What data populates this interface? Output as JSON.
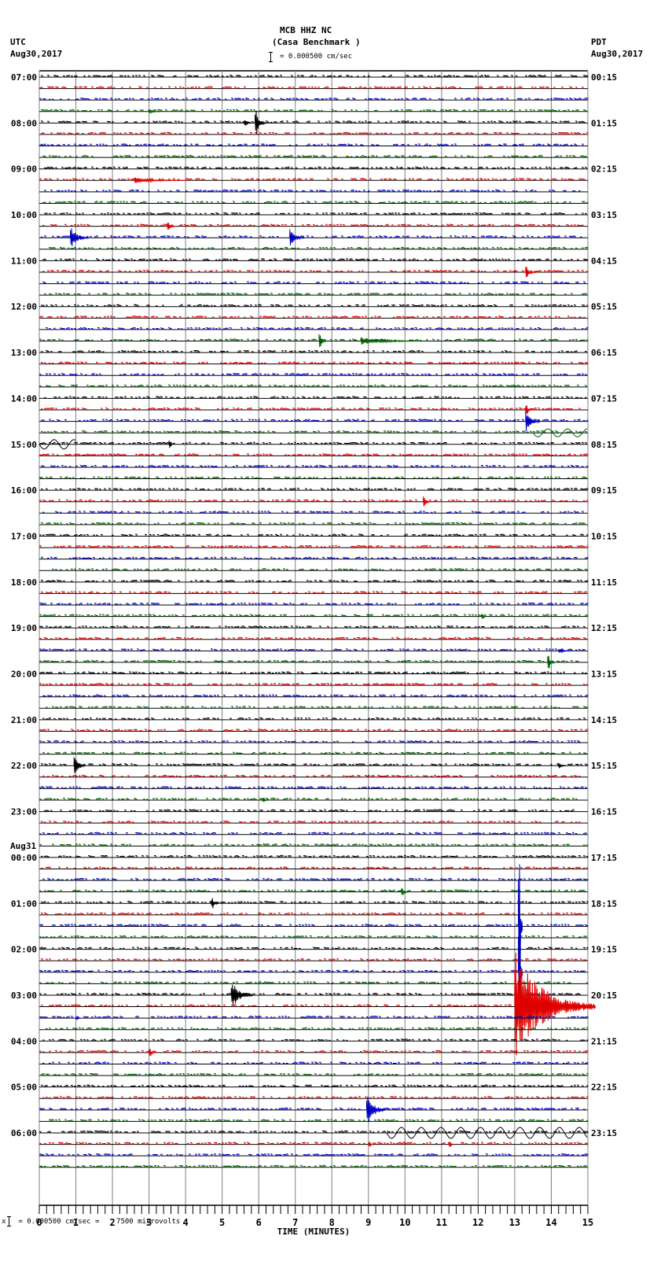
{
  "header": {
    "station": "MCB HHZ NC",
    "site": "(Casa Benchmark )",
    "left_tz": "UTC",
    "left_date": "Aug30,2017",
    "right_tz": "PDT",
    "right_date": "Aug30,2017",
    "scale_text": "= 0.000500 cm/sec"
  },
  "footer": {
    "prefix": "x",
    "text": "= 0.000500 cm/sec =    7500 microvolts"
  },
  "colors": {
    "trace_cycle": [
      "#000000",
      "#e00000",
      "#0000c0",
      "#006000"
    ],
    "grid": "#808080",
    "baseline": "#000000",
    "background": "#ffffff"
  },
  "chart_data": {
    "type": "line",
    "title": "MCB HHZ NC (Casa Benchmark )",
    "subtitle": "helicorder seismogram, 15-minute lines",
    "xlabel": "TIME (MINUTES)",
    "ylabel": "",
    "xlim": [
      0,
      15
    ],
    "x_ticks": [
      0,
      1,
      2,
      3,
      4,
      5,
      6,
      7,
      8,
      9,
      10,
      11,
      12,
      13,
      14,
      15
    ],
    "minor_ticks_per_minute": 5,
    "grid": true,
    "scale": "0.000500 cm/sec = 7500 microvolts",
    "rows_per_hour": 4,
    "row_count": 96,
    "left_labels": [
      {
        "row": 0,
        "text": "07:00"
      },
      {
        "row": 4,
        "text": "08:00"
      },
      {
        "row": 8,
        "text": "09:00"
      },
      {
        "row": 12,
        "text": "10:00"
      },
      {
        "row": 16,
        "text": "11:00"
      },
      {
        "row": 20,
        "text": "12:00"
      },
      {
        "row": 24,
        "text": "13:00"
      },
      {
        "row": 28,
        "text": "14:00"
      },
      {
        "row": 32,
        "text": "15:00"
      },
      {
        "row": 36,
        "text": "16:00"
      },
      {
        "row": 40,
        "text": "17:00"
      },
      {
        "row": 44,
        "text": "18:00"
      },
      {
        "row": 48,
        "text": "19:00"
      },
      {
        "row": 52,
        "text": "20:00"
      },
      {
        "row": 56,
        "text": "21:00"
      },
      {
        "row": 60,
        "text": "22:00"
      },
      {
        "row": 64,
        "text": "23:00"
      },
      {
        "row": 68,
        "text": "00:00",
        "date": "Aug31"
      },
      {
        "row": 72,
        "text": "01:00"
      },
      {
        "row": 76,
        "text": "02:00"
      },
      {
        "row": 80,
        "text": "03:00"
      },
      {
        "row": 84,
        "text": "04:00"
      },
      {
        "row": 88,
        "text": "05:00"
      },
      {
        "row": 92,
        "text": "06:00"
      }
    ],
    "right_labels": [
      "00:15",
      "01:15",
      "02:15",
      "03:15",
      "04:15",
      "05:15",
      "06:15",
      "07:15",
      "08:15",
      "09:15",
      "10:15",
      "11:15",
      "12:15",
      "13:15",
      "14:15",
      "15:15",
      "16:15",
      "17:15",
      "18:15",
      "19:15",
      "20:15",
      "21:15",
      "22:15",
      "23:15"
    ],
    "events": [
      {
        "row": 3,
        "minute": 3.0,
        "amp": 3,
        "dur": 0.3
      },
      {
        "row": 4,
        "minute": 5.9,
        "amp": 16,
        "dur": 0.3
      },
      {
        "row": 4,
        "minute": 5.6,
        "amp": 4,
        "dur": 0.2
      },
      {
        "row": 9,
        "minute": 2.6,
        "amp": 4,
        "dur": 1.4
      },
      {
        "row": 13,
        "minute": 3.5,
        "amp": 6,
        "dur": 0.2
      },
      {
        "row": 14,
        "minute": 0.85,
        "amp": 14,
        "dur": 0.5
      },
      {
        "row": 14,
        "minute": 6.85,
        "amp": 11,
        "dur": 0.4
      },
      {
        "row": 17,
        "minute": 13.3,
        "amp": 8,
        "dur": 0.3
      },
      {
        "row": 23,
        "minute": 7.65,
        "amp": 9,
        "dur": 0.2
      },
      {
        "row": 23,
        "minute": 8.8,
        "amp": 5,
        "dur": 1.7
      },
      {
        "row": 29,
        "minute": 13.3,
        "amp": 6,
        "dur": 0.2
      },
      {
        "row": 30,
        "minute": 13.3,
        "amp": 14,
        "dur": 0.4
      },
      {
        "row": 31,
        "minute": 13.5,
        "amp": 5,
        "dur": 1.5,
        "wave": true
      },
      {
        "row": 32,
        "minute": 0.0,
        "amp": 6,
        "dur": 1.0,
        "wave": true
      },
      {
        "row": 32,
        "minute": 3.55,
        "amp": 5,
        "dur": 0.1
      },
      {
        "row": 37,
        "minute": 10.5,
        "amp": 7,
        "dur": 0.2
      },
      {
        "row": 47,
        "minute": 12.1,
        "amp": 5,
        "dur": 0.1
      },
      {
        "row": 50,
        "minute": 14.2,
        "amp": 5,
        "dur": 0.3
      },
      {
        "row": 51,
        "minute": 13.9,
        "amp": 9,
        "dur": 0.2
      },
      {
        "row": 60,
        "minute": 0.95,
        "amp": 14,
        "dur": 0.3
      },
      {
        "row": 60,
        "minute": 14.2,
        "amp": 4,
        "dur": 0.2
      },
      {
        "row": 63,
        "minute": 6.1,
        "amp": 4,
        "dur": 0.2
      },
      {
        "row": 71,
        "minute": 9.9,
        "amp": 7,
        "dur": 0.2
      },
      {
        "row": 72,
        "minute": 4.7,
        "amp": 7,
        "dur": 0.2
      },
      {
        "row": 74,
        "minute": 13.1,
        "amp": 90,
        "dur": 0.1
      },
      {
        "row": 78,
        "minute": 13.1,
        "amp": 60,
        "dur": 0.1
      },
      {
        "row": 80,
        "minute": 5.25,
        "amp": 20,
        "dur": 0.6
      },
      {
        "row": 81,
        "minute": 13.0,
        "amp": 70,
        "dur": 2.2
      },
      {
        "row": 82,
        "minute": 1.0,
        "amp": 3,
        "dur": 0.1
      },
      {
        "row": 85,
        "minute": 3.0,
        "amp": 6,
        "dur": 0.2
      },
      {
        "row": 90,
        "minute": 8.95,
        "amp": 24,
        "dur": 0.5
      },
      {
        "row": 92,
        "minute": 9.5,
        "amp": 7,
        "dur": 5.5,
        "wave": true
      },
      {
        "row": 93,
        "minute": 11.2,
        "amp": 7,
        "dur": 0.1
      },
      {
        "row": 93,
        "minute": 9.0,
        "amp": 4,
        "dur": 0.1
      }
    ]
  }
}
